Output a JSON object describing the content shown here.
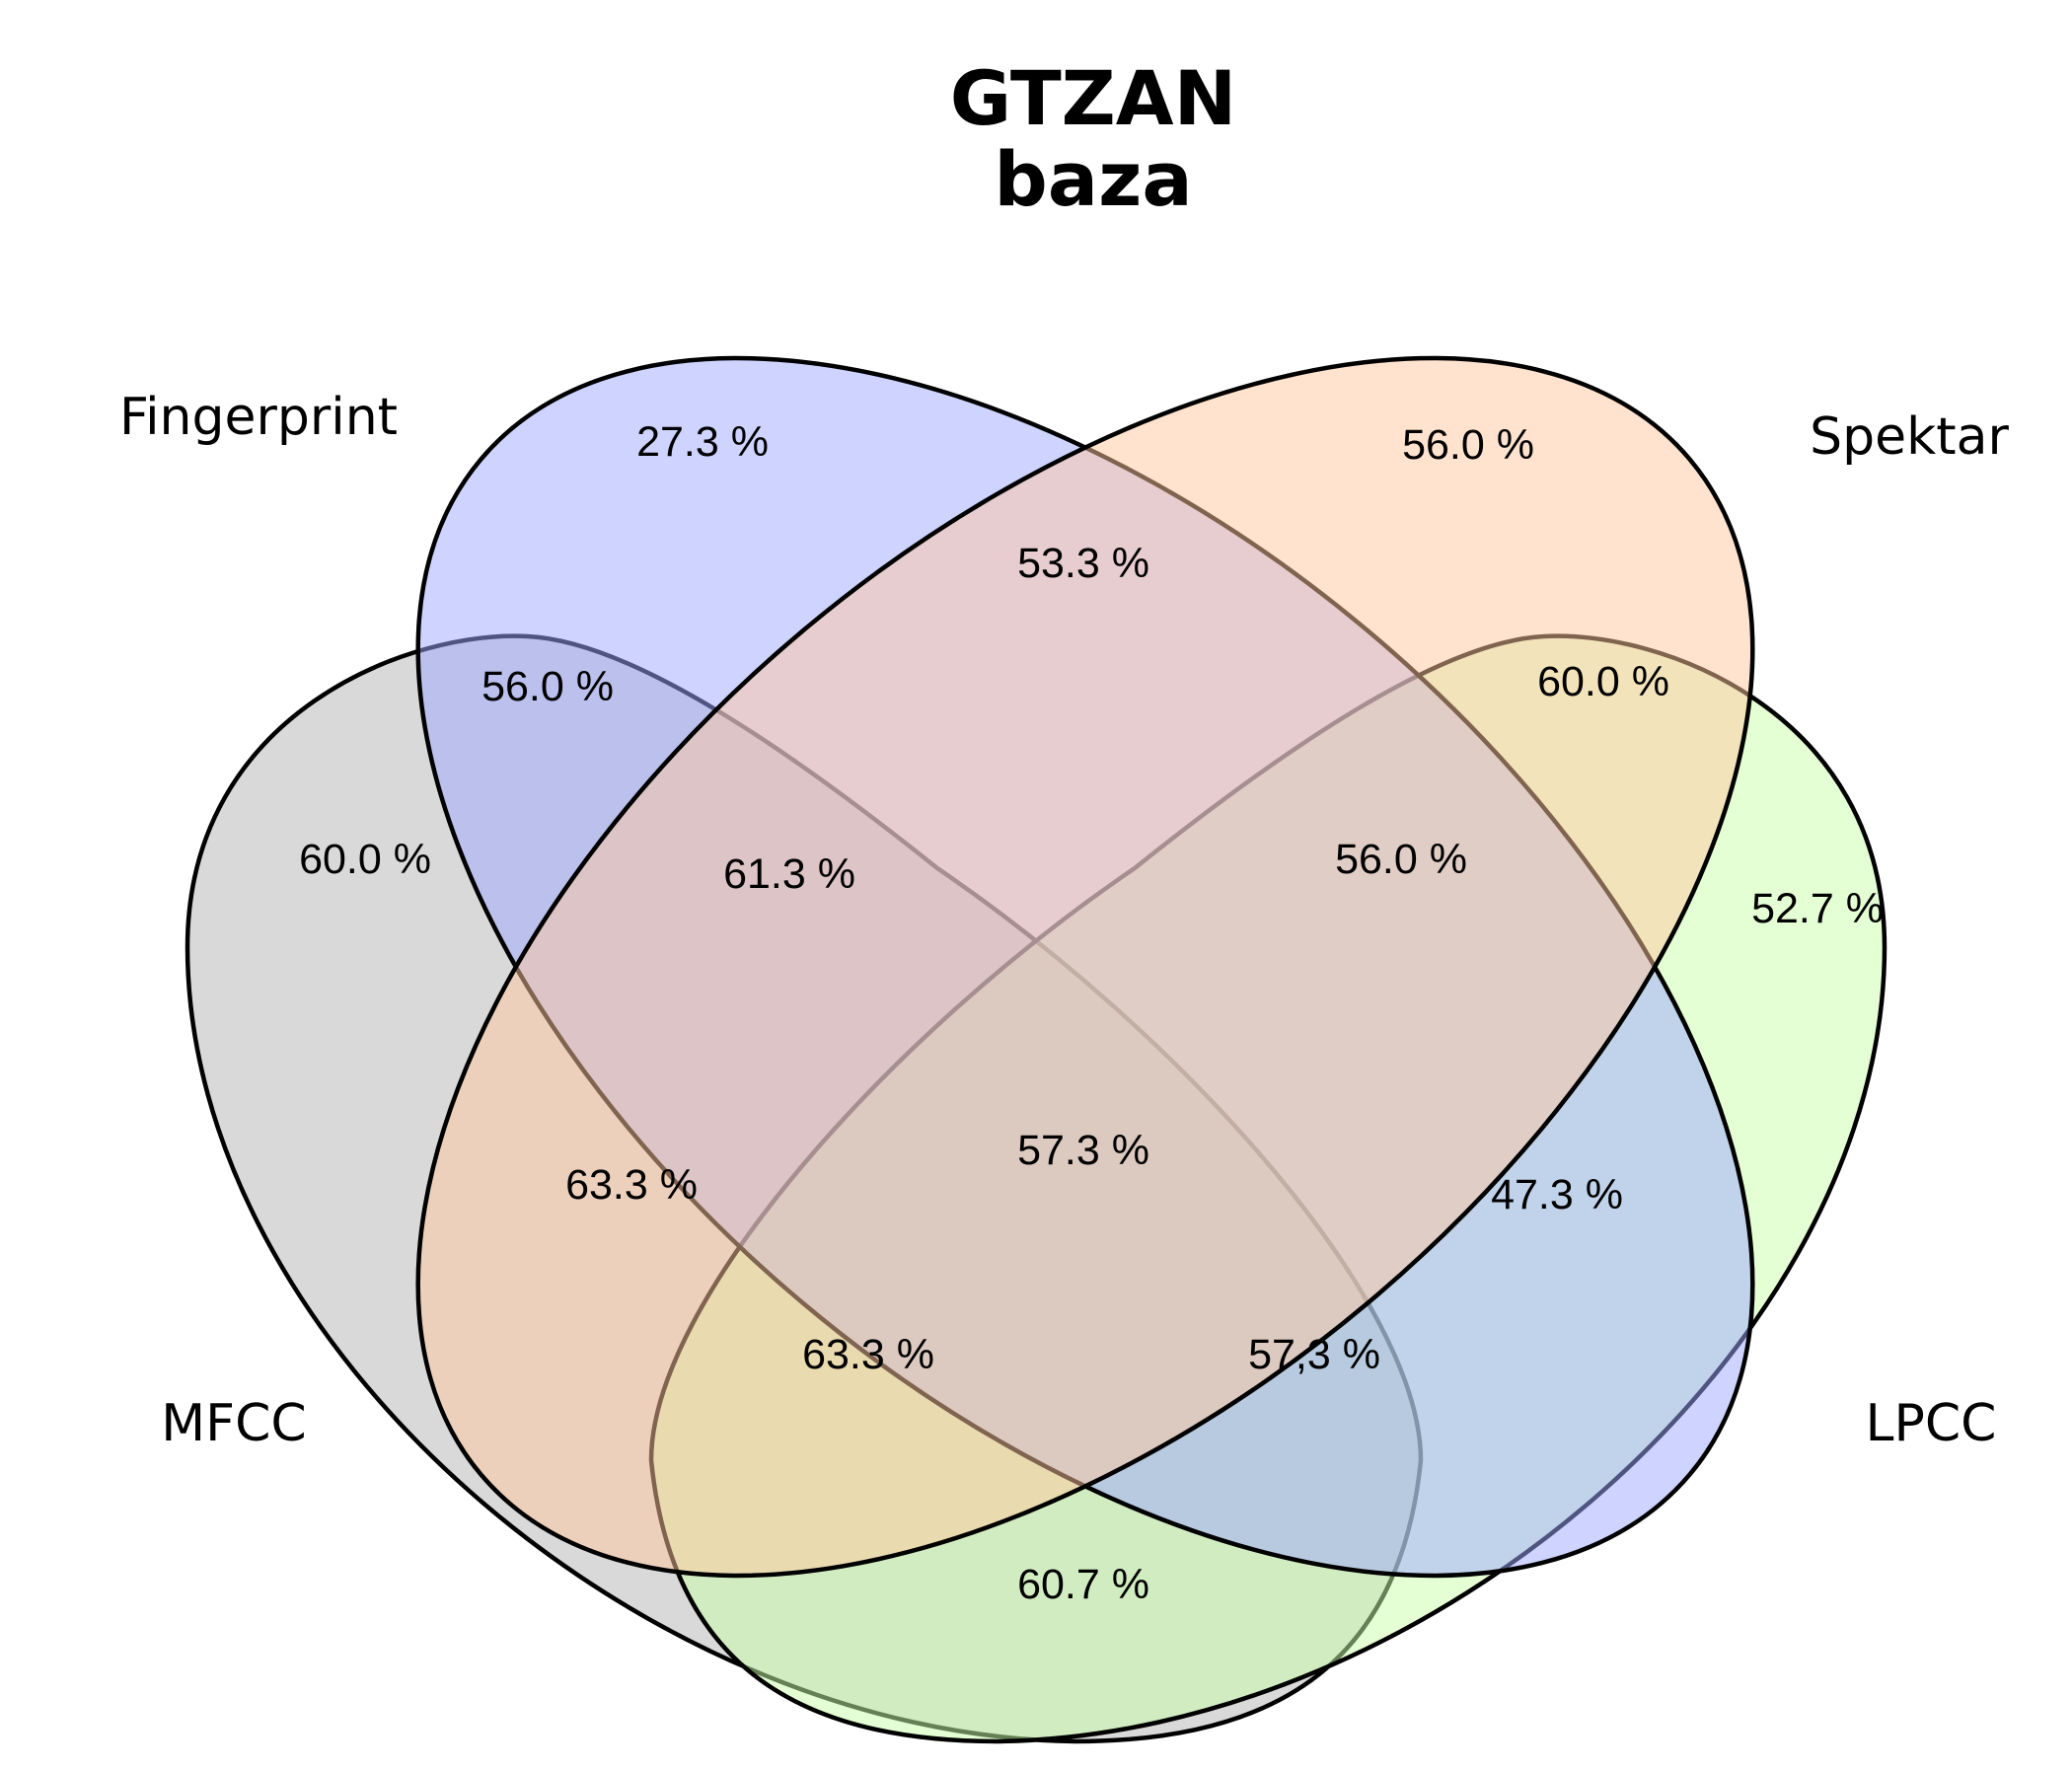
{
  "title": {
    "line1": "GTZAN",
    "line2": "baza"
  },
  "sets": [
    {
      "id": "mfcc",
      "label": "MFCC",
      "color": "#b3b3b3"
    },
    {
      "id": "fingerprint",
      "label": "Fingerprint",
      "color": "#9ea8ff"
    },
    {
      "id": "spektar",
      "label": "Spektar",
      "color": "#ffc8a0"
    },
    {
      "id": "lpcc",
      "label": "LPCC",
      "color": "#ccffaa"
    }
  ],
  "regions": {
    "fingerprint_only": "27.3 %",
    "spektar_only": "56.0 %",
    "fingerprint_spektar": "53.3 %",
    "mfcc_fingerprint": "56.0 %",
    "spektar_lpcc": "60.0 %",
    "mfcc_only": "60.0 %",
    "mfcc_fingerprint_spektar": "61.3 %",
    "fingerprint_spektar_lpcc": "56.0 %",
    "lpcc_only": "52.7 %",
    "mfcc_spektar": "63.3 %",
    "all_four": "57.3 %",
    "fingerprint_lpcc": "47.3 %",
    "mfcc_spektar_lpcc": "63.3 %",
    "mfcc_fingerprint_lpcc": "57,3 %",
    "mfcc_lpcc": "60.7 %"
  }
}
